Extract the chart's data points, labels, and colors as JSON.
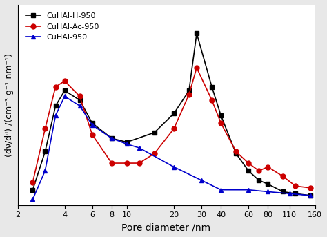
{
  "series": [
    {
      "label": "CuHAl-H-950",
      "color": "#000000",
      "marker": "s",
      "x": [
        2.5,
        3.0,
        3.5,
        4.0,
        5.0,
        6.0,
        8.0,
        10.0,
        15.0,
        20.0,
        25.0,
        28.0,
        35.0,
        40.0,
        50.0,
        60.0,
        70.0,
        80.0,
        100.0,
        120.0,
        150.0
      ],
      "y": [
        0.08,
        0.28,
        0.52,
        0.6,
        0.55,
        0.43,
        0.35,
        0.33,
        0.38,
        0.48,
        0.6,
        0.9,
        0.62,
        0.47,
        0.27,
        0.18,
        0.13,
        0.11,
        0.07,
        0.06,
        0.05
      ]
    },
    {
      "label": "CuHAl-Ac-950",
      "color": "#cc0000",
      "marker": "o",
      "x": [
        2.5,
        3.0,
        3.5,
        4.0,
        5.0,
        6.0,
        8.0,
        10.0,
        12.0,
        15.0,
        20.0,
        25.0,
        28.0,
        35.0,
        40.0,
        50.0,
        60.0,
        70.0,
        80.0,
        100.0,
        120.0,
        150.0
      ],
      "y": [
        0.12,
        0.4,
        0.62,
        0.65,
        0.57,
        0.37,
        0.22,
        0.22,
        0.22,
        0.27,
        0.4,
        0.58,
        0.72,
        0.55,
        0.43,
        0.28,
        0.22,
        0.18,
        0.2,
        0.15,
        0.1,
        0.09
      ]
    },
    {
      "label": "CuHAl-950",
      "color": "#0000cc",
      "marker": "^",
      "x": [
        2.5,
        3.0,
        3.5,
        4.0,
        5.0,
        6.0,
        8.0,
        10.0,
        12.0,
        20.0,
        30.0,
        40.0,
        60.0,
        80.0,
        110.0,
        150.0
      ],
      "y": [
        0.03,
        0.18,
        0.47,
        0.57,
        0.52,
        0.42,
        0.35,
        0.32,
        0.3,
        0.2,
        0.13,
        0.08,
        0.08,
        0.07,
        0.06,
        0.05
      ]
    }
  ],
  "xlabel": "Pore diameter /nm",
  "ylabel": "(dv/dd) /(cm⁻³·g⁻¹·nm⁻¹)",
  "xticks": [
    2,
    4,
    6,
    8,
    10,
    20,
    30,
    40,
    60,
    80,
    110,
    160
  ],
  "xlim": [
    2.0,
    160.0
  ],
  "ylim": [
    0.0,
    1.05
  ],
  "background_color": "#e8e8e8",
  "plot_background": "#ffffff",
  "linewidth": 1.2,
  "markersize": 5
}
